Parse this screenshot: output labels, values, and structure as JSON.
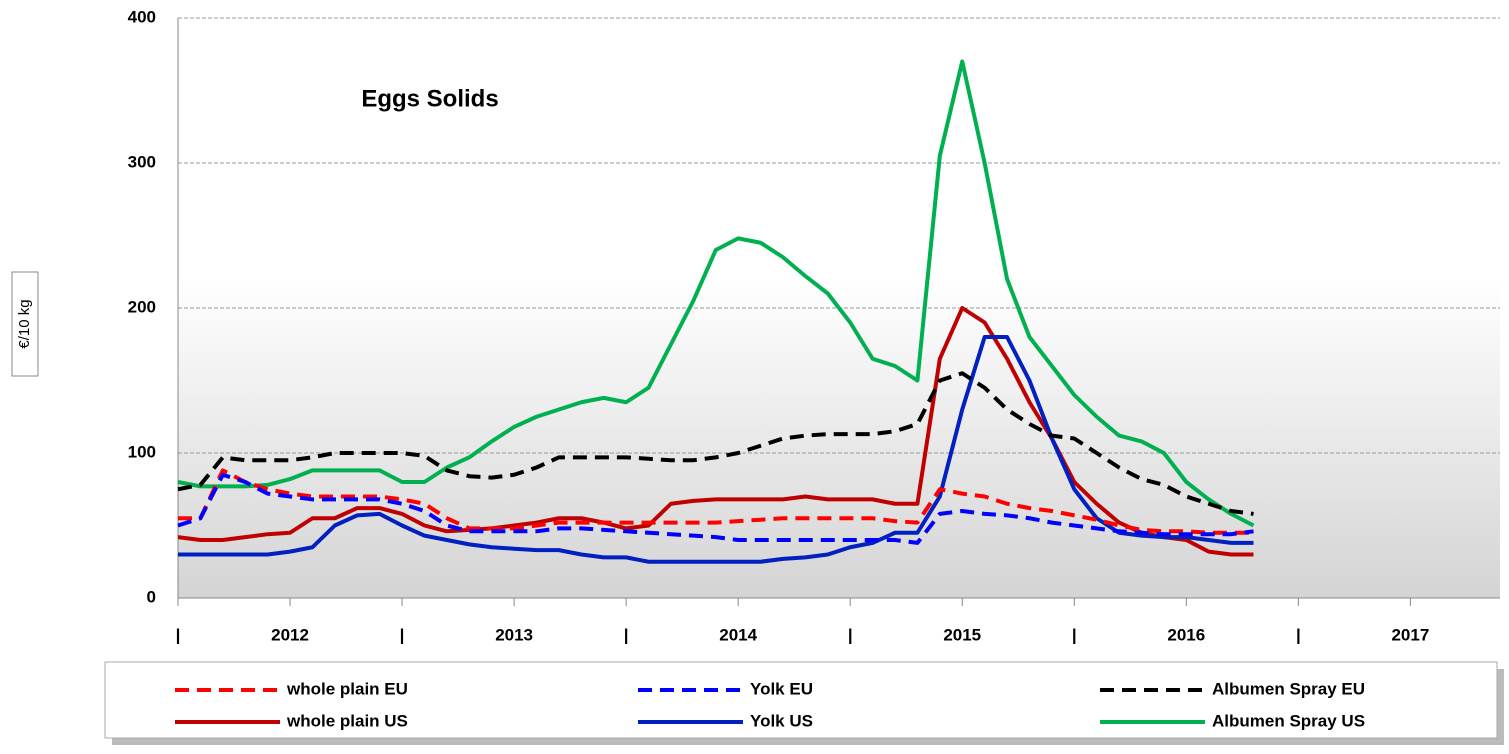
{
  "chart_data": {
    "type": "line",
    "title": "Eggs Solids",
    "ylabel": "€/10 kg",
    "xlim": [
      2012,
      2017.9
    ],
    "ylim": [
      0,
      400
    ],
    "yticks": [
      0,
      100,
      200,
      300,
      400
    ],
    "grid": true,
    "xticks": [
      {
        "value": 2012,
        "label": "|"
      },
      {
        "value": 2012.5,
        "label": "2012"
      },
      {
        "value": 2013,
        "label": "|"
      },
      {
        "value": 2013.5,
        "label": "2013"
      },
      {
        "value": 2014,
        "label": "|"
      },
      {
        "value": 2014.5,
        "label": "2014"
      },
      {
        "value": 2015,
        "label": "|"
      },
      {
        "value": 2015.5,
        "label": "2015"
      },
      {
        "value": 2016,
        "label": "|"
      },
      {
        "value": 2016.5,
        "label": "2016"
      },
      {
        "value": 2017,
        "label": "|"
      },
      {
        "value": 2017.5,
        "label": "2017"
      }
    ],
    "x": [
      2012.0,
      2012.1,
      2012.2,
      2012.3,
      2012.4,
      2012.5,
      2012.6,
      2012.7,
      2012.8,
      2012.9,
      2013.0,
      2013.1,
      2013.2,
      2013.3,
      2013.4,
      2013.5,
      2013.6,
      2013.7,
      2013.8,
      2013.9,
      2014.0,
      2014.1,
      2014.2,
      2014.3,
      2014.4,
      2014.5,
      2014.6,
      2014.7,
      2014.8,
      2014.9,
      2015.0,
      2015.1,
      2015.2,
      2015.3,
      2015.4,
      2015.5,
      2015.6,
      2015.7,
      2015.8,
      2015.9,
      2016.0,
      2016.1,
      2016.2,
      2016.3,
      2016.4,
      2016.5,
      2016.6,
      2016.7,
      2016.8
    ],
    "series": [
      {
        "name": "whole plain EU",
        "color": "#ff0000",
        "dashed": true,
        "values": [
          55,
          55,
          88,
          80,
          75,
          72,
          70,
          70,
          70,
          70,
          68,
          65,
          55,
          48,
          48,
          48,
          50,
          52,
          52,
          52,
          52,
          52,
          52,
          52,
          52,
          53,
          54,
          55,
          55,
          55,
          55,
          55,
          53,
          52,
          75,
          72,
          70,
          65,
          62,
          60,
          57,
          54,
          50,
          47,
          46,
          46,
          45,
          45,
          45
        ]
      },
      {
        "name": "Yolk EU",
        "color": "#0000ff",
        "dashed": true,
        "values": [
          50,
          55,
          85,
          80,
          72,
          70,
          68,
          68,
          68,
          68,
          65,
          60,
          50,
          46,
          46,
          46,
          46,
          48,
          48,
          47,
          46,
          45,
          44,
          43,
          42,
          40,
          40,
          40,
          40,
          40,
          40,
          40,
          40,
          38,
          58,
          60,
          58,
          57,
          55,
          52,
          50,
          48,
          46,
          45,
          44,
          44,
          44,
          44,
          46
        ]
      },
      {
        "name": "Albumen Spray EU",
        "color": "#000000",
        "dashed": true,
        "values": [
          75,
          78,
          97,
          95,
          95,
          95,
          97,
          100,
          100,
          100,
          100,
          98,
          88,
          84,
          83,
          85,
          90,
          97,
          97,
          97,
          97,
          96,
          95,
          95,
          97,
          100,
          105,
          110,
          112,
          113,
          113,
          113,
          115,
          120,
          150,
          155,
          145,
          130,
          120,
          112,
          110,
          100,
          90,
          82,
          78,
          70,
          65,
          60,
          58
        ]
      },
      {
        "name": "whole plain US",
        "color": "#c00000",
        "dashed": false,
        "values": [
          42,
          40,
          40,
          42,
          44,
          45,
          55,
          55,
          62,
          62,
          58,
          50,
          46,
          47,
          48,
          50,
          52,
          55,
          55,
          52,
          48,
          50,
          65,
          67,
          68,
          68,
          68,
          68,
          70,
          68,
          68,
          68,
          65,
          65,
          165,
          200,
          190,
          165,
          135,
          110,
          80,
          65,
          52,
          45,
          42,
          40,
          32,
          30,
          30
        ]
      },
      {
        "name": "Yolk US",
        "color": "#0020c0",
        "dashed": false,
        "values": [
          30,
          30,
          30,
          30,
          30,
          32,
          35,
          50,
          57,
          58,
          50,
          43,
          40,
          37,
          35,
          34,
          33,
          33,
          30,
          28,
          28,
          25,
          25,
          25,
          25,
          25,
          25,
          27,
          28,
          30,
          35,
          38,
          45,
          45,
          70,
          130,
          180,
          180,
          150,
          110,
          75,
          55,
          45,
          43,
          42,
          42,
          40,
          38,
          38
        ]
      },
      {
        "name": "Albumen Spray US",
        "color": "#00b050",
        "dashed": false,
        "values": [
          80,
          77,
          77,
          77,
          78,
          82,
          88,
          88,
          88,
          88,
          80,
          80,
          90,
          97,
          108,
          118,
          125,
          130,
          135,
          138,
          135,
          145,
          175,
          205,
          240,
          248,
          245,
          235,
          222,
          210,
          190,
          165,
          160,
          150,
          305,
          370,
          300,
          220,
          180,
          160,
          140,
          125,
          112,
          108,
          100,
          80,
          68,
          58,
          50
        ]
      }
    ]
  }
}
